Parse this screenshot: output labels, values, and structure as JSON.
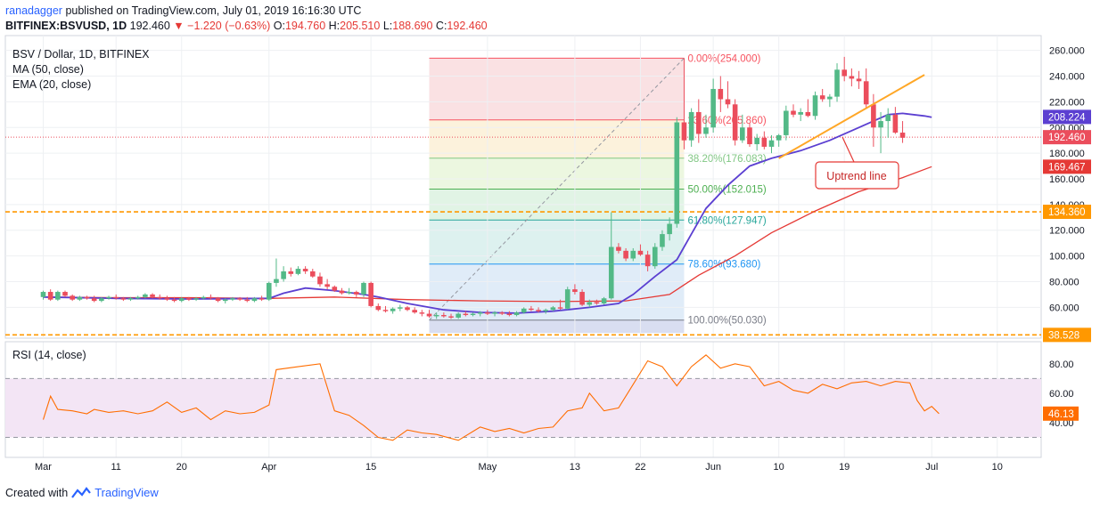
{
  "header": {
    "user": "ranadagger",
    "published": "published on TradingView.com, July 01, 2019 16:16:30 UTC",
    "symbol": "BITFINEX:BSVUSD, 1D",
    "last": "192.460",
    "change": "−1.220 (−0.63%)",
    "o_label": "O:",
    "o": "194.760",
    "h_label": "H:",
    "h": "205.510",
    "l_label": "L:",
    "l": "188.690",
    "c_label": "C:",
    "c": "192.460"
  },
  "legend": {
    "title": "BSV / Dollar, 1D, BITFINEX",
    "ma": "MA (50, close)",
    "ema": "EMA (20, close)",
    "rsi": "RSI (14, close)"
  },
  "annotation": {
    "label": "Uptrend line"
  },
  "footer": {
    "created": "Created with",
    "brand": "TradingView"
  },
  "colors": {
    "up": "#53b987",
    "down": "#eb4d5c",
    "ma": "#e53935",
    "ema": "#5b3fd1",
    "trend": "#ffa726",
    "hline": "#ff9800",
    "rsi": "#ff6d00",
    "rsi_band": "#f3e5f5"
  },
  "chart_data": [
    {
      "type": "candlestick",
      "y_ticks": [
        60,
        80,
        100,
        120,
        140,
        160,
        180,
        200,
        220,
        240,
        260
      ],
      "y_tick_labels": [
        "60.000",
        "80.000",
        "100.000",
        "120.000",
        "140.000",
        "160.000",
        "180.000",
        "200.000",
        "220.000",
        "240.000",
        "260.000"
      ],
      "ylim": [
        36,
        266
      ],
      "x_ticks": [
        {
          "day": 0,
          "label": "Mar"
        },
        {
          "day": 10,
          "label": "11"
        },
        {
          "day": 19,
          "label": "20"
        },
        {
          "day": 31,
          "label": "Apr"
        },
        {
          "day": 45,
          "label": "15"
        },
        {
          "day": 61,
          "label": "May"
        },
        {
          "day": 73,
          "label": "13"
        },
        {
          "day": 82,
          "label": "22"
        },
        {
          "day": 92,
          "label": "Jun"
        },
        {
          "day": 101,
          "label": "10"
        },
        {
          "day": 110,
          "label": "19"
        },
        {
          "day": 122,
          "label": "Jul"
        },
        {
          "day": 131,
          "label": "10"
        }
      ],
      "price_badges": [
        {
          "value": 208.224,
          "label": "208.224",
          "color": "#5b3fd1"
        },
        {
          "value": 192.46,
          "label": "192.460",
          "color": "#eb4d5c"
        },
        {
          "value": 169.467,
          "label": "169.467",
          "color": "#e53935"
        },
        {
          "value": 134.36,
          "label": "134.360",
          "color": "#ff9800"
        },
        {
          "value": 38.528,
          "label": "38.528",
          "color": "#ff9800"
        }
      ],
      "horizontal_lines": [
        134.36,
        38.528
      ],
      "fibonacci": {
        "start_day": 53,
        "end_day": 88,
        "levels": [
          {
            "value": 254.0,
            "label": "0.00%(254.000)",
            "color": "#f7525f"
          },
          {
            "value": 205.86,
            "label": "23.60%(205.860)",
            "color": "#f7525f"
          },
          {
            "value": 176.083,
            "label": "38.20%(176.083)",
            "color": "#81c784"
          },
          {
            "value": 152.015,
            "label": "50.00%(152.015)",
            "color": "#4caf50"
          },
          {
            "value": 127.947,
            "label": "61.80%(127.947)",
            "color": "#26a69a"
          },
          {
            "value": 93.68,
            "label": "78.60%(93.680)",
            "color": "#2196f3"
          },
          {
            "value": 50.03,
            "label": "100.00%(50.030)",
            "color": "#787b86"
          }
        ]
      },
      "trendline": {
        "from_day": 101,
        "from_value": 176,
        "to_day": 121,
        "to_value": 241
      },
      "candles": [
        [
          68,
          73,
          66,
          72
        ],
        [
          72,
          74,
          65,
          66
        ],
        [
          66,
          73,
          65,
          72
        ],
        [
          72,
          73,
          68,
          69
        ],
        [
          69,
          70,
          65,
          66
        ],
        [
          66,
          69,
          65,
          68
        ],
        [
          68,
          69,
          66,
          67
        ],
        [
          67,
          69,
          64,
          65
        ],
        [
          65,
          68,
          64,
          67
        ],
        [
          67,
          69,
          66,
          68
        ],
        [
          68,
          70,
          66,
          67
        ],
        [
          67,
          68,
          65,
          66
        ],
        [
          66,
          68,
          65,
          67
        ],
        [
          67,
          69,
          66,
          68
        ],
        [
          68,
          71,
          67,
          70
        ],
        [
          70,
          71,
          67,
          68
        ],
        [
          68,
          70,
          66,
          67
        ],
        [
          67,
          69,
          65,
          66
        ],
        [
          66,
          68,
          64,
          65
        ],
        [
          65,
          68,
          64,
          67
        ],
        [
          67,
          68,
          65,
          66
        ],
        [
          66,
          68,
          65,
          67
        ],
        [
          67,
          69,
          66,
          68
        ],
        [
          68,
          70,
          66,
          67
        ],
        [
          67,
          68,
          64,
          65
        ],
        [
          65,
          67,
          63,
          66
        ],
        [
          66,
          68,
          65,
          67
        ],
        [
          67,
          68,
          65,
          66
        ],
        [
          66,
          68,
          64,
          65
        ],
        [
          65,
          68,
          64,
          67
        ],
        [
          67,
          69,
          65,
          66
        ],
        [
          66,
          80,
          65,
          79
        ],
        [
          79,
          98,
          76,
          82
        ],
        [
          82,
          92,
          80,
          88
        ],
        [
          88,
          91,
          84,
          86
        ],
        [
          86,
          92,
          85,
          90
        ],
        [
          90,
          92,
          86,
          88
        ],
        [
          88,
          90,
          83,
          84
        ],
        [
          84,
          87,
          76,
          78
        ],
        [
          78,
          82,
          74,
          76
        ],
        [
          76,
          77,
          72,
          73
        ],
        [
          73,
          75,
          70,
          71
        ],
        [
          71,
          75,
          70,
          72
        ],
        [
          72,
          73,
          68,
          70
        ],
        [
          70,
          80,
          68,
          79
        ],
        [
          79,
          80,
          60,
          61
        ],
        [
          61,
          63,
          57,
          58
        ],
        [
          58,
          61,
          56,
          57
        ],
        [
          57,
          60,
          55,
          59
        ],
        [
          59,
          62,
          57,
          60
        ],
        [
          60,
          61,
          57,
          58
        ],
        [
          58,
          60,
          55,
          56
        ],
        [
          56,
          58,
          53,
          55
        ],
        [
          55,
          58,
          52,
          53
        ],
        [
          53,
          56,
          51,
          54
        ],
        [
          54,
          56,
          52,
          53
        ],
        [
          53,
          55,
          51,
          52
        ],
        [
          52,
          56,
          51,
          55
        ],
        [
          55,
          57,
          53,
          54
        ],
        [
          54,
          56,
          53,
          55
        ],
        [
          55,
          57,
          53,
          56
        ],
        [
          56,
          58,
          54,
          55
        ],
        [
          55,
          57,
          53,
          56
        ],
        [
          56,
          57,
          54,
          55
        ],
        [
          55,
          57,
          53,
          54
        ],
        [
          54,
          57,
          53,
          56
        ],
        [
          56,
          60,
          55,
          59
        ],
        [
          59,
          61,
          57,
          58
        ],
        [
          58,
          60,
          56,
          57
        ],
        [
          57,
          59,
          55,
          58
        ],
        [
          58,
          61,
          57,
          60
        ],
        [
          60,
          66,
          58,
          59
        ],
        [
          59,
          76,
          58,
          74
        ],
        [
          74,
          78,
          70,
          72
        ],
        [
          72,
          74,
          61,
          62
        ],
        [
          62,
          66,
          60,
          64
        ],
        [
          64,
          66,
          62,
          63
        ],
        [
          63,
          68,
          62,
          67
        ],
        [
          67,
          134,
          66,
          107
        ],
        [
          107,
          110,
          102,
          104
        ],
        [
          104,
          106,
          96,
          98
        ],
        [
          98,
          106,
          96,
          104
        ],
        [
          104,
          109,
          100,
          101
        ],
        [
          101,
          104,
          88,
          92
        ],
        [
          92,
          110,
          90,
          107
        ],
        [
          107,
          120,
          104,
          117
        ],
        [
          117,
          130,
          112,
          125
        ],
        [
          125,
          208,
          122,
          204
        ],
        [
          204,
          254,
          183,
          190
        ],
        [
          190,
          215,
          185,
          212
        ],
        [
          212,
          222,
          188,
          195
        ],
        [
          195,
          210,
          192,
          200
        ],
        [
          200,
          238,
          196,
          230
        ],
        [
          230,
          240,
          212,
          222
        ],
        [
          222,
          236,
          215,
          218
        ],
        [
          218,
          222,
          186,
          190
        ],
        [
          190,
          210,
          188,
          200
        ],
        [
          200,
          203,
          185,
          187
        ],
        [
          187,
          195,
          182,
          192
        ],
        [
          192,
          197,
          183,
          185
        ],
        [
          185,
          194,
          180,
          190
        ],
        [
          190,
          195,
          185,
          194
        ],
        [
          194,
          217,
          190,
          213
        ],
        [
          213,
          218,
          208,
          210
        ],
        [
          210,
          215,
          205,
          212
        ],
        [
          212,
          222,
          208,
          209
        ],
        [
          209,
          228,
          206,
          225
        ],
        [
          225,
          230,
          220,
          222
        ],
        [
          222,
          226,
          216,
          224
        ],
        [
          224,
          250,
          220,
          245
        ],
        [
          245,
          255,
          236,
          240
        ],
        [
          240,
          246,
          232,
          238
        ],
        [
          238,
          244,
          230,
          236
        ],
        [
          236,
          246,
          215,
          218
        ],
        [
          218,
          226,
          185,
          200
        ],
        [
          200,
          212,
          180,
          205
        ],
        [
          205,
          215,
          192,
          210
        ],
        [
          210,
          216,
          195,
          196
        ],
        [
          196,
          205,
          188,
          192
        ]
      ],
      "ma50": [
        [
          0,
          68
        ],
        [
          10,
          67.5
        ],
        [
          20,
          67.5
        ],
        [
          31,
          67
        ],
        [
          40,
          68
        ],
        [
          50,
          66
        ],
        [
          60,
          65
        ],
        [
          70,
          64.5
        ],
        [
          80,
          65
        ],
        [
          86,
          70
        ],
        [
          90,
          85
        ],
        [
          95,
          100
        ],
        [
          100,
          118
        ],
        [
          106,
          135
        ],
        [
          112,
          150
        ],
        [
          118,
          161
        ],
        [
          122,
          169.5
        ]
      ],
      "ema20": [
        [
          0,
          68
        ],
        [
          10,
          67
        ],
        [
          20,
          66.5
        ],
        [
          31,
          67
        ],
        [
          33,
          71
        ],
        [
          36,
          75
        ],
        [
          40,
          73
        ],
        [
          44,
          70
        ],
        [
          46,
          68
        ],
        [
          50,
          63
        ],
        [
          55,
          58
        ],
        [
          60,
          56
        ],
        [
          65,
          55.5
        ],
        [
          70,
          57
        ],
        [
          75,
          60
        ],
        [
          79,
          63
        ],
        [
          81,
          70
        ],
        [
          84,
          84
        ],
        [
          87,
          97
        ],
        [
          89,
          117
        ],
        [
          91,
          137
        ],
        [
          94,
          155
        ],
        [
          97,
          170
        ],
        [
          100,
          176
        ],
        [
          104,
          182
        ],
        [
          108,
          190
        ],
        [
          112,
          200
        ],
        [
          116,
          210
        ],
        [
          118,
          211
        ],
        [
          121,
          209
        ],
        [
          122,
          208
        ]
      ]
    },
    {
      "type": "line",
      "name": "RSI (14, close)",
      "y_ticks": [
        40,
        60,
        80
      ],
      "y_tick_labels": [
        "40.00",
        "60.00",
        "80.00"
      ],
      "band": [
        30,
        70
      ],
      "ylim": [
        20,
        95
      ],
      "last_label": "46.13",
      "values": [
        [
          0,
          42
        ],
        [
          1,
          58
        ],
        [
          2,
          49
        ],
        [
          4,
          48
        ],
        [
          6,
          46
        ],
        [
          7,
          49
        ],
        [
          9,
          47
        ],
        [
          11,
          48
        ],
        [
          13,
          46
        ],
        [
          15,
          48
        ],
        [
          17,
          54
        ],
        [
          19,
          47
        ],
        [
          21,
          50
        ],
        [
          23,
          42
        ],
        [
          25,
          48
        ],
        [
          27,
          46
        ],
        [
          29,
          47
        ],
        [
          31,
          52
        ],
        [
          32,
          76
        ],
        [
          35,
          78
        ],
        [
          38,
          80
        ],
        [
          40,
          48
        ],
        [
          42,
          45
        ],
        [
          44,
          38
        ],
        [
          46,
          30
        ],
        [
          48,
          28
        ],
        [
          50,
          35
        ],
        [
          52,
          33
        ],
        [
          54,
          32
        ],
        [
          57,
          28
        ],
        [
          60,
          37
        ],
        [
          62,
          34
        ],
        [
          64,
          36
        ],
        [
          66,
          33
        ],
        [
          68,
          36
        ],
        [
          70,
          37
        ],
        [
          72,
          48
        ],
        [
          74,
          50
        ],
        [
          75,
          60
        ],
        [
          77,
          48
        ],
        [
          79,
          50
        ],
        [
          81,
          66
        ],
        [
          83,
          82
        ],
        [
          85,
          78
        ],
        [
          87,
          65
        ],
        [
          89,
          78
        ],
        [
          91,
          86
        ],
        [
          93,
          77
        ],
        [
          95,
          80
        ],
        [
          97,
          78
        ],
        [
          99,
          65
        ],
        [
          101,
          68
        ],
        [
          103,
          62
        ],
        [
          105,
          60
        ],
        [
          107,
          66
        ],
        [
          109,
          63
        ],
        [
          111,
          67
        ],
        [
          113,
          68
        ],
        [
          115,
          65
        ],
        [
          117,
          68
        ],
        [
          119,
          67
        ],
        [
          120,
          55
        ],
        [
          121,
          48
        ],
        [
          122,
          51
        ],
        [
          123,
          46.13
        ]
      ]
    }
  ]
}
